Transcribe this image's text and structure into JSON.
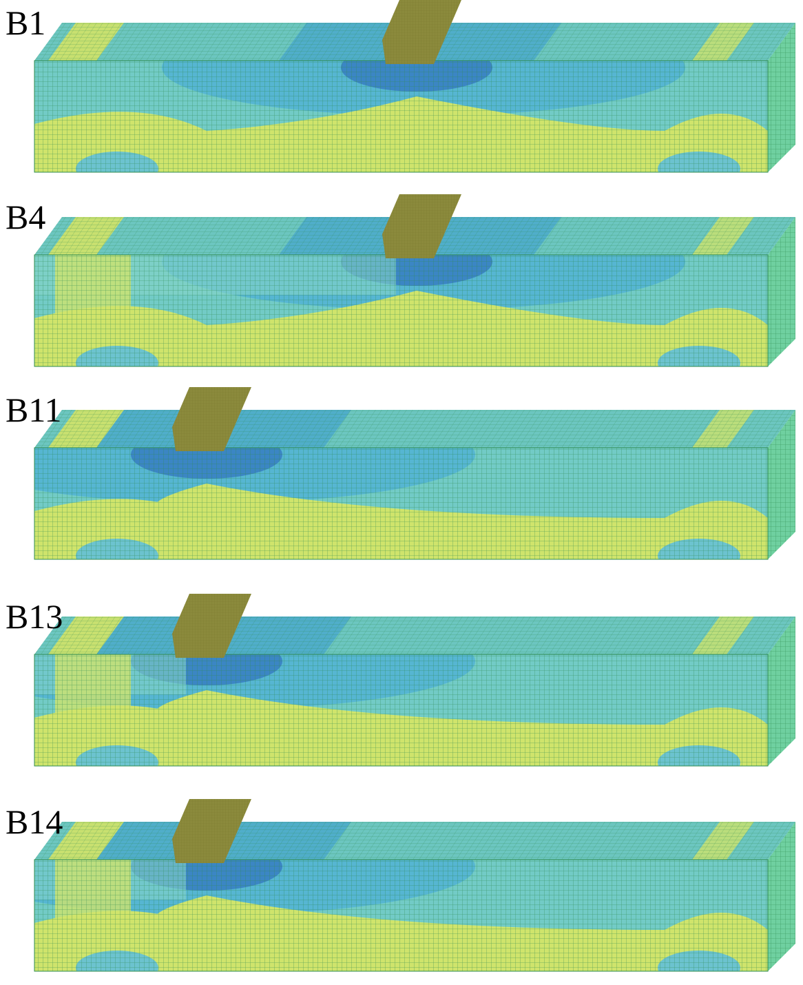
{
  "panels": [
    {
      "label": "B1"
    },
    {
      "label": "B4"
    },
    {
      "label": "B11"
    },
    {
      "label": "B13"
    },
    {
      "label": "B14"
    }
  ]
}
